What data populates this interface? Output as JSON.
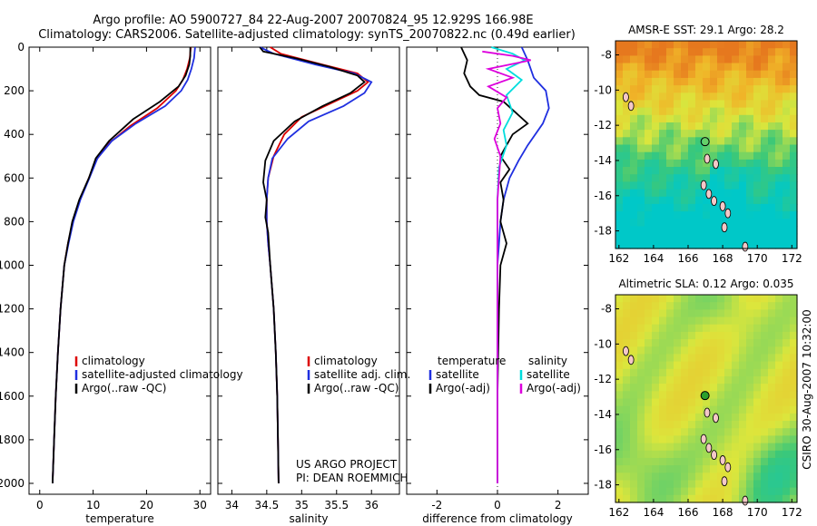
{
  "header": {
    "line1": "Argo profile: AO 5900727_84 22-Aug-2007 20070824_95 12.929S 166.98E",
    "line2": "Climatology: CARS2006. Satellite-adjusted climatology: synTS_20070822.nc (0.49d earlier)"
  },
  "colors": {
    "climatology": "#dd0000",
    "satellite": "#1f2fe0",
    "argo": "#000000",
    "argo_adj": "#dd00dd",
    "sat_sal": "#00dddd"
  },
  "chart_data": [
    {
      "type": "line",
      "xlabel": "temperature",
      "ylabel": "",
      "xlim": [
        -2,
        32
      ],
      "ylim": [
        2050,
        0
      ],
      "xticks": [
        0,
        10,
        20,
        30
      ],
      "yticks": [
        0,
        200,
        400,
        600,
        800,
        1000,
        1200,
        1400,
        1600,
        1800,
        2000
      ],
      "legend": [
        "climatology",
        "satellite-adjusted climatology",
        "Argo(..raw -QC)"
      ],
      "series": [
        {
          "name": "climatology",
          "color": "#dd0000",
          "points": [
            [
              28.3,
              0
            ],
            [
              28.1,
              50
            ],
            [
              27.6,
              100
            ],
            [
              26.8,
              150
            ],
            [
              25.5,
              200
            ],
            [
              22,
              280
            ],
            [
              17,
              360
            ],
            [
              13,
              440
            ],
            [
              10.5,
              520
            ],
            [
              9.2,
              600
            ],
            [
              7.5,
              700
            ],
            [
              6.2,
              800
            ],
            [
              5.3,
              900
            ],
            [
              4.6,
              1000
            ],
            [
              3.9,
              1200
            ],
            [
              3.4,
              1400
            ],
            [
              3.0,
              1600
            ],
            [
              2.7,
              1800
            ],
            [
              2.4,
              2000
            ]
          ]
        },
        {
          "name": "satellite-adjusted climatology",
          "color": "#1f2fe0",
          "points": [
            [
              29.1,
              0
            ],
            [
              28.9,
              50
            ],
            [
              28.4,
              100
            ],
            [
              27.7,
              150
            ],
            [
              26.5,
              200
            ],
            [
              23.5,
              270
            ],
            [
              18,
              350
            ],
            [
              13.5,
              430
            ],
            [
              10.8,
              510
            ],
            [
              9.3,
              600
            ],
            [
              7.6,
              700
            ],
            [
              6.3,
              800
            ],
            [
              5.4,
              900
            ],
            [
              4.6,
              1000
            ],
            [
              3.9,
              1200
            ],
            [
              3.4,
              1400
            ],
            [
              3.0,
              1600
            ],
            [
              2.7,
              1800
            ],
            [
              2.4,
              2000
            ]
          ]
        },
        {
          "name": "Argo(..raw -QC)",
          "color": "#000000",
          "points": [
            [
              28.2,
              0
            ],
            [
              28.2,
              40
            ],
            [
              28.0,
              80
            ],
            [
              27.3,
              130
            ],
            [
              26.0,
              180
            ],
            [
              22.5,
              250
            ],
            [
              17.5,
              330
            ],
            [
              13,
              430
            ],
            [
              10.5,
              510
            ],
            [
              9.2,
              600
            ],
            [
              7.4,
              700
            ],
            [
              6.1,
              800
            ],
            [
              5.3,
              900
            ],
            [
              4.6,
              1000
            ],
            [
              3.9,
              1200
            ],
            [
              3.4,
              1400
            ],
            [
              3.0,
              1600
            ],
            [
              2.7,
              1800
            ],
            [
              2.4,
              2000
            ]
          ]
        }
      ]
    },
    {
      "type": "line",
      "xlabel": "salinity",
      "ylabel": "",
      "xlim": [
        33.8,
        36.4
      ],
      "ylim": [
        2050,
        0
      ],
      "xticks": [
        34,
        34.5,
        35,
        35.5,
        36
      ],
      "yticks": [],
      "legend": [
        "climatology",
        "satellite adj. clim.",
        "Argo(..raw -QC)"
      ],
      "annotation": [
        "US ARGO PROJECT",
        "PI: DEAN ROEMMICH"
      ],
      "series": [
        {
          "name": "climatology",
          "color": "#dd0000",
          "points": [
            [
              34.55,
              0
            ],
            [
              34.7,
              30
            ],
            [
              35.3,
              80
            ],
            [
              35.8,
              120
            ],
            [
              35.95,
              160
            ],
            [
              35.8,
              200
            ],
            [
              35.4,
              260
            ],
            [
              35.0,
              320
            ],
            [
              34.75,
              400
            ],
            [
              34.6,
              500
            ],
            [
              34.52,
              600
            ],
            [
              34.5,
              700
            ],
            [
              34.5,
              800
            ],
            [
              34.52,
              900
            ],
            [
              34.55,
              1000
            ],
            [
              34.6,
              1200
            ],
            [
              34.63,
              1400
            ],
            [
              34.65,
              1600
            ],
            [
              34.66,
              1800
            ],
            [
              34.67,
              2000
            ]
          ]
        },
        {
          "name": "satellite adj. clim.",
          "color": "#1f2fe0",
          "points": [
            [
              34.4,
              0
            ],
            [
              34.6,
              30
            ],
            [
              35.2,
              80
            ],
            [
              35.75,
              120
            ],
            [
              36.0,
              160
            ],
            [
              35.9,
              210
            ],
            [
              35.6,
              270
            ],
            [
              35.1,
              340
            ],
            [
              34.8,
              420
            ],
            [
              34.58,
              510
            ],
            [
              34.52,
              600
            ],
            [
              34.5,
              700
            ],
            [
              34.5,
              800
            ],
            [
              34.52,
              900
            ],
            [
              34.55,
              1000
            ],
            [
              34.6,
              1200
            ],
            [
              34.63,
              1400
            ],
            [
              34.65,
              1600
            ],
            [
              34.66,
              1800
            ],
            [
              34.67,
              2000
            ]
          ]
        },
        {
          "name": "Argo(..raw -QC)",
          "color": "#000000",
          "points": [
            [
              34.4,
              0
            ],
            [
              34.45,
              20
            ],
            [
              34.9,
              50
            ],
            [
              35.4,
              90
            ],
            [
              35.8,
              130
            ],
            [
              35.9,
              160
            ],
            [
              35.7,
              210
            ],
            [
              35.3,
              270
            ],
            [
              34.9,
              340
            ],
            [
              34.6,
              430
            ],
            [
              34.48,
              520
            ],
            [
              34.45,
              620
            ],
            [
              34.5,
              700
            ],
            [
              34.48,
              780
            ],
            [
              34.52,
              850
            ],
            [
              34.55,
              1000
            ],
            [
              34.6,
              1200
            ],
            [
              34.63,
              1400
            ],
            [
              34.65,
              1600
            ],
            [
              34.66,
              1800
            ],
            [
              34.67,
              2000
            ]
          ]
        }
      ]
    },
    {
      "type": "line",
      "xlabel": "difference from climatology",
      "ylabel": "",
      "xlim": [
        -3,
        3
      ],
      "ylim": [
        2050,
        0
      ],
      "xticks": [
        -2,
        0,
        2
      ],
      "yticks": [],
      "legend_temperature": {
        "heading": "temperature",
        "items": [
          "satellite",
          "Argo(-adj)"
        ]
      },
      "legend_salinity": {
        "heading": "salinity",
        "items": [
          "satellite",
          "Argo(-adj)"
        ]
      },
      "series": [
        {
          "name": "satellite",
          "color": "#1f2fe0",
          "points": [
            [
              0.8,
              0
            ],
            [
              1.0,
              60
            ],
            [
              1.2,
              140
            ],
            [
              1.6,
              200
            ],
            [
              1.7,
              280
            ],
            [
              1.5,
              350
            ],
            [
              1.0,
              450
            ],
            [
              0.7,
              520
            ],
            [
              0.4,
              600
            ],
            [
              0.2,
              700
            ],
            [
              0.1,
              800
            ],
            [
              0.05,
              900
            ],
            [
              0,
              1000
            ],
            [
              0,
              1200
            ],
            [
              0,
              1600
            ],
            [
              0,
              2000
            ]
          ]
        },
        {
          "name": "Argo(-adj)",
          "color": "#000000",
          "points": [
            [
              -1.2,
              0
            ],
            [
              -1.0,
              60
            ],
            [
              -1.1,
              120
            ],
            [
              -0.9,
              180
            ],
            [
              -0.6,
              220
            ],
            [
              0.2,
              250
            ],
            [
              0.6,
              300
            ],
            [
              1.0,
              350
            ],
            [
              0.5,
              400
            ],
            [
              0.3,
              450
            ],
            [
              0.1,
              500
            ],
            [
              0.4,
              560
            ],
            [
              0.1,
              620
            ],
            [
              0.2,
              700
            ],
            [
              0.1,
              800
            ],
            [
              0.3,
              900
            ],
            [
              0.1,
              1000
            ],
            [
              0.05,
              1200
            ],
            [
              0,
              1600
            ],
            [
              0,
              2000
            ]
          ]
        },
        {
          "name": "salinity satellite",
          "color": "#00dddd",
          "points": [
            [
              -0.2,
              0
            ],
            [
              0.5,
              30
            ],
            [
              0.9,
              60
            ],
            [
              0.3,
              100
            ],
            [
              0.8,
              150
            ],
            [
              0.3,
              220
            ],
            [
              0.5,
              300
            ],
            [
              0.2,
              380
            ],
            [
              0.3,
              450
            ],
            [
              0.05,
              550
            ],
            [
              0,
              700
            ],
            [
              0,
              1000
            ],
            [
              0,
              1200
            ],
            [
              0,
              2000
            ]
          ]
        },
        {
          "name": "salinity Argo(-adj)",
          "color": "#dd00dd",
          "points": [
            [
              -0.5,
              20
            ],
            [
              0.5,
              40
            ],
            [
              1.1,
              60
            ],
            [
              -0.3,
              100
            ],
            [
              0.5,
              140
            ],
            [
              -0.3,
              180
            ],
            [
              0.3,
              230
            ],
            [
              0,
              280
            ],
            [
              0.1,
              350
            ],
            [
              -0.1,
              420
            ],
            [
              0.1,
              500
            ],
            [
              0.05,
              600
            ],
            [
              0,
              700
            ],
            [
              0,
              1000
            ],
            [
              0,
              2000
            ]
          ]
        }
      ]
    },
    {
      "type": "heatmap",
      "title": "AMSR-E SST: 29.1 Argo: 28.2",
      "xticks": [
        162,
        164,
        166,
        168,
        170,
        172
      ],
      "yticks": [
        -8,
        -10,
        -12,
        -14,
        -16,
        -18
      ],
      "xlim": [
        161.8,
        172.3
      ],
      "ylim": [
        -19,
        -7.2
      ],
      "marker": [
        166.98,
        -12.929
      ]
    },
    {
      "type": "heatmap",
      "title": "Altimetric SLA: 0.12 Argo: 0.035",
      "side_label": "CSIRO 30-Aug-2007 10:32:00",
      "xticks": [
        162,
        164,
        166,
        168,
        170,
        172
      ],
      "yticks": [
        -8,
        -10,
        -12,
        -14,
        -16,
        -18
      ],
      "xlim": [
        161.8,
        172.3
      ],
      "ylim": [
        -19,
        -7.2
      ],
      "marker": [
        166.98,
        -12.929
      ]
    }
  ]
}
